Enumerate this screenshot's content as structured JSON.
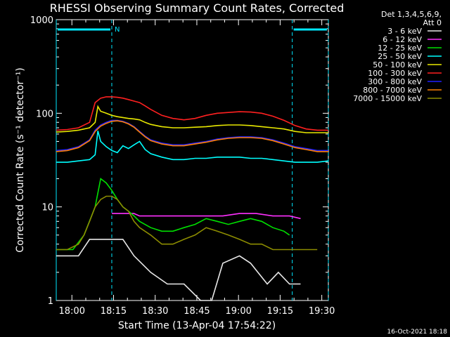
{
  "chart_data": {
    "type": "line",
    "title": "RHESSI Observing Summary Count Rates, Corrected",
    "xlabel": "Start Time (13-Apr-04 17:54:22)",
    "ylabel": "Corrected Count Rate (s⁻¹ detector⁻¹)",
    "y_scale": "log",
    "ylim": [
      1,
      1000
    ],
    "xlim_minutes_after_start": [
      0,
      98
    ],
    "x_ticks": [
      "17:54:22",
      "18:00",
      "18:15",
      "18:30",
      "18:45",
      "19:00",
      "19:15",
      "19:30"
    ],
    "x_tick_labels": [
      "18:00",
      "18:15",
      "18:30",
      "18:45",
      "19:00",
      "19:15",
      "19:30"
    ],
    "x_tick_minutes": [
      5.633,
      20.633,
      35.633,
      50.633,
      65.633,
      80.633,
      95.633
    ],
    "y_tick_labels": [
      "1",
      "10",
      "100",
      "1000"
    ],
    "y_tick_values": [
      1,
      10,
      100,
      1000
    ],
    "legend_header": [
      "Det 1,3,4,5,6,9,",
      "Att 0"
    ],
    "legend_position": "right",
    "series": [
      {
        "name": "3 - 6 keV",
        "color": "#e8e8e8",
        "x": [
          0,
          8,
          12,
          16,
          20,
          24,
          28,
          34,
          40,
          46,
          52,
          56,
          60,
          66,
          70,
          76,
          80,
          84,
          86,
          88,
          92
        ],
        "y": [
          3,
          3,
          4.5,
          4.5,
          4.5,
          4.5,
          3,
          2,
          1.5,
          1.5,
          1,
          1,
          2.5,
          3,
          2.5,
          1.5,
          2,
          1.5,
          1.5,
          1.5,
          null
        ]
      },
      {
        "name": "6 - 12 keV",
        "color": "#ff30ff",
        "x": [
          12,
          16,
          20,
          24,
          28,
          30,
          36,
          42,
          48,
          54,
          60,
          66,
          72,
          78,
          84,
          88
        ],
        "y": [
          null,
          null,
          8.5,
          8.5,
          8.5,
          8,
          8,
          8,
          8,
          8,
          8,
          8.5,
          8.5,
          8,
          8,
          7.5
        ]
      },
      {
        "name": "12 - 25 keV",
        "color": "#00e000",
        "x": [
          0,
          6,
          10,
          14,
          16,
          18,
          20,
          22,
          24,
          26,
          28,
          30,
          34,
          38,
          42,
          46,
          50,
          54,
          58,
          62,
          66,
          70,
          74,
          78,
          82,
          84,
          86
        ],
        "y": [
          3.5,
          3.5,
          5,
          10,
          20,
          18,
          15,
          12,
          10,
          9,
          8,
          7,
          6,
          5.5,
          5.5,
          6,
          6.5,
          7.5,
          7,
          6.5,
          7,
          7.5,
          7,
          6,
          5.5,
          5,
          null
        ]
      },
      {
        "name": "25 - 50 keV",
        "color": "#00ffff",
        "x": [
          0,
          4,
          8,
          12,
          14,
          15,
          16,
          18,
          20,
          22,
          24,
          26,
          28,
          30,
          32,
          34,
          38,
          42,
          46,
          50,
          54,
          58,
          62,
          66,
          70,
          74,
          78,
          82,
          86,
          90,
          94,
          98
        ],
        "y": [
          30,
          30,
          31,
          32,
          36,
          65,
          50,
          44,
          40,
          38,
          45,
          42,
          46,
          50,
          41,
          37,
          34,
          32,
          32,
          33,
          33,
          34,
          34,
          34,
          33,
          33,
          32,
          31,
          30,
          30,
          30,
          31
        ]
      },
      {
        "name": "50 - 100 keV",
        "color": "#e8e800",
        "x": [
          0,
          4,
          8,
          12,
          14,
          15,
          16,
          18,
          20,
          22,
          24,
          26,
          28,
          30,
          32,
          34,
          38,
          42,
          46,
          50,
          54,
          58,
          62,
          66,
          70,
          74,
          78,
          82,
          86,
          90,
          94,
          98
        ],
        "y": [
          63,
          64,
          66,
          70,
          80,
          118,
          105,
          100,
          95,
          92,
          90,
          88,
          87,
          85,
          80,
          76,
          72,
          70,
          70,
          71,
          72,
          74,
          75,
          75,
          74,
          72,
          70,
          68,
          64,
          62,
          62,
          62
        ]
      },
      {
        "name": "100 - 300 keV",
        "color": "#ff2020",
        "x": [
          0,
          4,
          8,
          12,
          14,
          16,
          18,
          20,
          22,
          24,
          26,
          28,
          30,
          32,
          34,
          38,
          42,
          46,
          50,
          54,
          58,
          62,
          66,
          70,
          74,
          78,
          82,
          86,
          90,
          94,
          98
        ],
        "y": [
          66,
          67,
          70,
          80,
          130,
          145,
          150,
          150,
          148,
          145,
          140,
          135,
          130,
          120,
          110,
          95,
          88,
          85,
          88,
          95,
          100,
          102,
          104,
          103,
          100,
          93,
          84,
          74,
          68,
          66,
          66
        ]
      },
      {
        "name": "300 - 800 keV",
        "color": "#2020ff",
        "x": [
          0,
          4,
          8,
          12,
          14,
          16,
          18,
          20,
          22,
          24,
          26,
          28,
          30,
          32,
          34,
          38,
          42,
          46,
          50,
          54,
          58,
          62,
          66,
          70,
          74,
          78,
          82,
          86,
          90,
          94,
          98
        ],
        "y": [
          40,
          41,
          44,
          52,
          66,
          75,
          80,
          84,
          84,
          82,
          78,
          72,
          64,
          57,
          52,
          48,
          46,
          46,
          48,
          50,
          53,
          55,
          56,
          56,
          55,
          52,
          48,
          44,
          42,
          40,
          40
        ]
      },
      {
        "name": "800 - 7000 keV",
        "color": "#ff8000",
        "x": [
          0,
          4,
          8,
          12,
          14,
          16,
          18,
          20,
          22,
          24,
          26,
          28,
          30,
          32,
          34,
          38,
          42,
          46,
          50,
          54,
          58,
          62,
          66,
          70,
          74,
          78,
          82,
          86,
          90,
          94,
          98
        ],
        "y": [
          39,
          40,
          43,
          51,
          64,
          73,
          78,
          82,
          83,
          81,
          77,
          71,
          63,
          56,
          51,
          47,
          45,
          45,
          47,
          49,
          52,
          54,
          55,
          55,
          54,
          51,
          47,
          43,
          41,
          39,
          39
        ]
      },
      {
        "name": "7000 - 15000 keV",
        "color": "#8c8c00",
        "x": [
          0,
          4,
          8,
          10,
          12,
          14,
          16,
          18,
          20,
          22,
          24,
          26,
          28,
          30,
          34,
          38,
          42,
          46,
          50,
          54,
          58,
          62,
          66,
          70,
          74,
          78,
          82,
          86,
          90,
          94,
          98
        ],
        "y": [
          3.5,
          3.5,
          4,
          5,
          7,
          10,
          12,
          13,
          13,
          12,
          10,
          9,
          7,
          6,
          5,
          4,
          4,
          4.5,
          5,
          6,
          5.5,
          5,
          4.5,
          4,
          4,
          3.5,
          3.5,
          3.5,
          3.5,
          3.5,
          null
        ]
      }
    ],
    "annotations": {
      "saa_bars_minutes": [
        [
          0,
          20
        ],
        [
          85,
          98
        ]
      ],
      "flag_label": "N",
      "flag_x_minute": 20
    }
  },
  "footer": {
    "timestamp": "16-Oct-2021 18:18"
  }
}
